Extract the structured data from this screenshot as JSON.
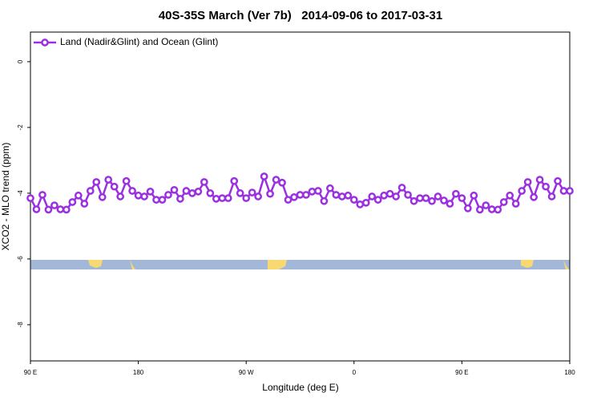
{
  "chart_data": {
    "type": "line",
    "title": "40S-35S March (Ver 7b)   2014-09-06 to 2017-03-31",
    "x_label": "Longitude (deg E)",
    "y_label": "XCO2 - MLO trend (ppm)",
    "x": [
      90,
      95,
      100,
      105,
      110,
      115,
      120,
      125,
      130,
      135,
      140,
      145,
      150,
      155,
      160,
      165,
      170,
      175,
      180,
      185,
      190,
      195,
      200,
      205,
      210,
      215,
      220,
      225,
      230,
      235,
      240,
      245,
      250,
      255,
      260,
      265,
      270,
      275,
      280,
      285,
      290,
      295,
      300,
      305,
      310,
      315,
      320,
      325,
      330,
      335,
      340,
      345,
      350,
      355,
      360,
      365,
      370,
      375,
      380,
      385,
      390,
      395,
      400,
      405,
      410,
      415,
      420,
      425,
      430,
      435,
      440,
      445,
      450,
      455,
      460,
      465,
      470,
      475,
      480,
      485,
      490,
      495,
      500,
      505,
      510,
      515,
      520,
      525,
      530,
      535,
      540
    ],
    "series": [
      {
        "name": "Land (Nadir&Glint) and Ocean (Glint)",
        "color": "#9b30e0",
        "values": [
          -4.15,
          -4.49,
          -4.05,
          -4.5,
          -4.37,
          -4.49,
          -4.5,
          -4.27,
          -4.07,
          -4.32,
          -3.93,
          -3.66,
          -4.12,
          -3.59,
          -3.8,
          -4.1,
          -3.63,
          -3.93,
          -4.07,
          -4.1,
          -3.95,
          -4.2,
          -4.2,
          -4.05,
          -3.9,
          -4.17,
          -3.93,
          -4.0,
          -3.95,
          -3.66,
          -4.0,
          -4.17,
          -4.15,
          -4.15,
          -3.63,
          -4.0,
          -4.15,
          -3.98,
          -4.1,
          -3.49,
          -4.02,
          -3.59,
          -3.68,
          -4.2,
          -4.12,
          -4.05,
          -4.05,
          -3.95,
          -3.93,
          -4.24,
          -3.85,
          -4.05,
          -4.1,
          -4.07,
          -4.2,
          -4.34,
          -4.29,
          -4.1,
          -4.2,
          -4.07,
          -4.02,
          -4.1,
          -3.83,
          -4.05,
          -4.24,
          -4.15,
          -4.15,
          -4.24,
          -4.1,
          -4.22,
          -4.32,
          -4.02,
          -4.15,
          -4.46,
          -4.07,
          -4.5,
          -4.37,
          -4.49,
          -4.5,
          -4.27,
          -4.07,
          -4.32,
          -3.93,
          -3.66,
          -4.12,
          -3.59,
          -3.8,
          -4.1,
          -3.63,
          -3.93,
          -3.93
        ]
      }
    ],
    "xlim": [
      90,
      540
    ],
    "xticks": [
      {
        "value": 90,
        "label": "90 E"
      },
      {
        "value": 180,
        "label": "180"
      },
      {
        "value": 270,
        "label": "90 W"
      },
      {
        "value": 360,
        "label": "0"
      },
      {
        "value": 450,
        "label": "90 E"
      },
      {
        "value": 540,
        "label": "180"
      }
    ],
    "ylim": [
      -9.1,
      0.9
    ],
    "yticks": [
      -8,
      -6,
      -4,
      -2,
      0
    ],
    "legend": "top-left"
  }
}
